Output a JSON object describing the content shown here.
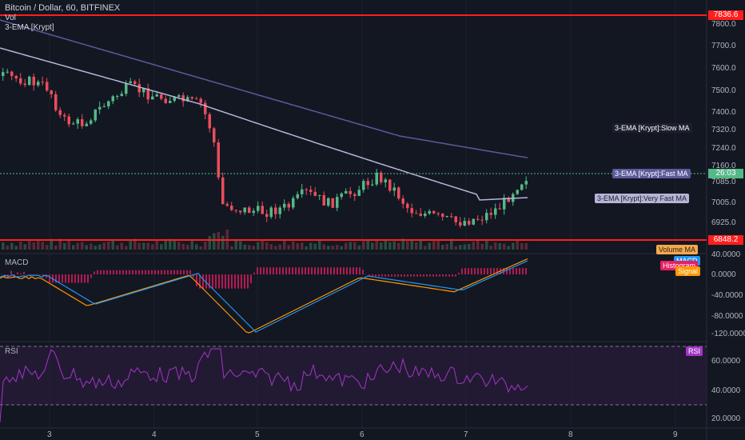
{
  "header": {
    "title": "Bitcoin / Dollar, 60, BITFINEX",
    "vol_label": "Vol",
    "ema_label": "3-EMA [Krypt]"
  },
  "panes": {
    "macd_label": "MACD",
    "rsi_label": "RSI"
  },
  "price_axis": [
    "7800.0",
    "7700.0",
    "7600.0",
    "7500.0",
    "7400.0",
    "7320.0",
    "7240.0",
    "7160.0",
    "7085.0",
    "7005.0",
    "6925.0"
  ],
  "macd_axis": [
    "40.0000",
    "0.0000",
    "-40.0000",
    "-80.0000",
    "-120.0000"
  ],
  "rsi_axis": [
    "60.0000",
    "40.0000",
    "20.0000"
  ],
  "time_axis": [
    "3",
    "4",
    "5",
    "6",
    "7",
    "8",
    "9"
  ],
  "horizontal_lines": {
    "top_value": "7836.6",
    "bottom_value": "6848.2"
  },
  "price_tags": {
    "slow_ma": "3-EMA [Krypt]:Slow MA",
    "fast_ma": "3-EMA [Krypt]:Fast MA",
    "fast_ma_value": "26:03",
    "very_fast_ma": "3-EMA [Krypt]:Very Fast MA",
    "volume_ma": "Volume MA",
    "macd": "MACD",
    "histogram": "Histogram",
    "signal": "Signal",
    "rsi": "RSI"
  },
  "colors": {
    "background": "#131722",
    "up": "#53b987",
    "down": "#eb4d5c",
    "hline": "#ff1e1e",
    "slow_ma": "#5b5a9c",
    "fast_ma": "#b7b3d8",
    "macd": "#2196f3",
    "signal": "#ff9800",
    "histogram": "#e91e63",
    "rsi": "#a335c7"
  }
}
